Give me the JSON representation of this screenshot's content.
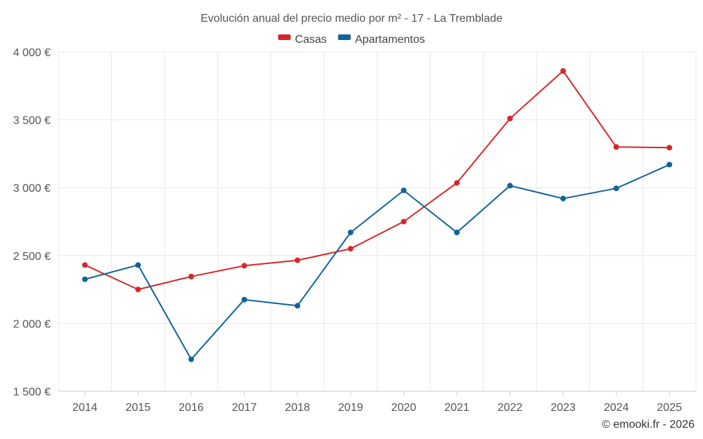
{
  "chart_data": {
    "type": "line",
    "title": "Evolución anual del precio medio por m² - 17 - La Tremblade",
    "categories": [
      "2014",
      "2015",
      "2016",
      "2017",
      "2018",
      "2019",
      "2020",
      "2021",
      "2022",
      "2023",
      "2024",
      "2025"
    ],
    "series": [
      {
        "name": "Casas",
        "color": "#d62728",
        "values": [
          2430,
          2250,
          2345,
          2425,
          2465,
          2550,
          2750,
          3035,
          3510,
          3860,
          3300,
          3295
        ]
      },
      {
        "name": "Apartamentos",
        "color": "#0f6498",
        "values": [
          2325,
          2430,
          1735,
          2175,
          2130,
          2670,
          2980,
          2670,
          3015,
          2920,
          2995,
          3170
        ]
      }
    ],
    "ylim": [
      1500,
      4000
    ],
    "yticks": [
      1500,
      2000,
      2500,
      3000,
      3500,
      4000
    ],
    "ytick_labels": [
      "1 500 €",
      "2 000 €",
      "2 500 €",
      "3 000 €",
      "3 500 €",
      "4 000 €"
    ],
    "xlabel": "",
    "ylabel": "",
    "grid": true,
    "legend_position": "top-center"
  },
  "credit": "© emooki.fr - 2026"
}
